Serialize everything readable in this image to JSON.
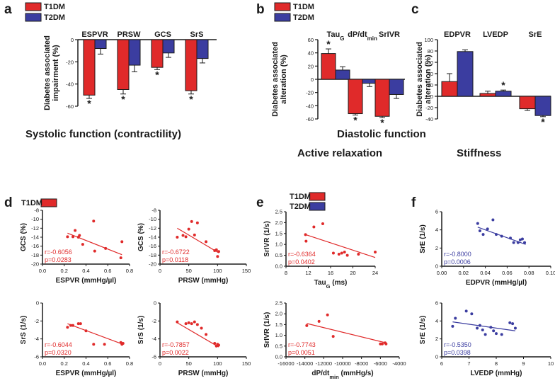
{
  "panel_labels": {
    "a": "a",
    "b": "b",
    "c": "c",
    "d": "d",
    "e": "e",
    "f": "f"
  },
  "legend_labels": {
    "t1dm": "T1DM",
    "t2dm": "T2DM"
  },
  "colors": {
    "t1dm": "#e02a2a",
    "t2dm": "#3b3da0",
    "axis": "#1a1a1a"
  },
  "headings": {
    "systolic": "Systolic function (contractility)",
    "diastolic": "Diastolic function",
    "active": "Active relaxation",
    "stiffness": "Stiffness"
  },
  "chart_data": [
    {
      "id": "a",
      "type": "bar",
      "ylabel": "Diabetes associated impairment (%)",
      "ylim": [
        -60,
        0
      ],
      "yticks": [
        -60,
        -40,
        -20,
        0
      ],
      "ytick_labels": [
        "-60",
        "-40",
        "-20",
        "0"
      ],
      "categories": [
        "ESPVR",
        "PRSW",
        "GCS",
        "SrS"
      ],
      "series": [
        {
          "name": "T1DM",
          "values": [
            -50,
            -45,
            -25,
            -46
          ],
          "err": [
            3,
            4,
            2,
            3
          ]
        },
        {
          "name": "T2DM",
          "values": [
            -8,
            -23,
            -12,
            -17
          ],
          "err": [
            5,
            6,
            4,
            4
          ]
        }
      ],
      "annotations": [
        "*",
        "*",
        "*",
        "*"
      ]
    },
    {
      "id": "b",
      "type": "bar",
      "ylabel": "Diabetes associated alteration (%)",
      "ylim": [
        -60,
        60
      ],
      "yticks": [
        -60,
        -40,
        -20,
        0,
        20,
        40,
        60
      ],
      "ytick_labels": [
        "-60",
        "-40",
        "-20",
        "0",
        "20",
        "40",
        "60"
      ],
      "categories": [
        "Tau",
        "dP/dt",
        "SrIVR"
      ],
      "category_subscripts": [
        "G",
        "min",
        ""
      ],
      "series": [
        {
          "name": "T1DM",
          "values": [
            39,
            -52,
            -56
          ],
          "err": [
            7,
            2,
            2
          ]
        },
        {
          "name": "T2DM",
          "values": [
            14,
            -6,
            -23
          ],
          "err": [
            5,
            5,
            6
          ]
        }
      ],
      "annotations": [
        "*",
        "*",
        "*"
      ]
    },
    {
      "id": "c",
      "type": "bar",
      "ylabel": "Diabetes associated alteration (%)",
      "ylim": [
        -40,
        100
      ],
      "yticks": [
        -40,
        -20,
        0,
        20,
        40,
        60,
        80,
        100
      ],
      "ytick_labels": [
        "-40",
        "-20",
        "0",
        "20",
        "40",
        "60",
        "80",
        "100"
      ],
      "categories": [
        "EDPVR",
        "LVEDP",
        "SrE"
      ],
      "series": [
        {
          "name": "T1DM",
          "values": [
            26,
            5,
            -22
          ],
          "err": [
            14,
            4,
            3
          ]
        },
        {
          "name": "T2DM",
          "values": [
            79,
            9,
            -34
          ],
          "err": [
            3,
            2,
            2
          ]
        }
      ],
      "annotations": [
        "*",
        "*"
      ]
    },
    {
      "id": "d1",
      "type": "scatter",
      "xlabel": "ESPVR (mmHg/µl)",
      "ylabel": "GCS (%)",
      "xlim": [
        0,
        0.8
      ],
      "ylim": [
        -20,
        -8
      ],
      "xticks": [
        0,
        0.2,
        0.4,
        0.6,
        0.8
      ],
      "xtick_labels": [
        "0.0",
        "0.2",
        "0.4",
        "0.6",
        "0.8"
      ],
      "yticks": [
        -20,
        -18,
        -16,
        -14,
        -12,
        -10,
        -8
      ],
      "ytick_labels": [
        "-20",
        "-18",
        "-16",
        "-14",
        "-12",
        "-10",
        "-8"
      ],
      "x": [
        0.23,
        0.28,
        0.3,
        0.33,
        0.34,
        0.37,
        0.47,
        0.48,
        0.58,
        0.72,
        0.73
      ],
      "y": [
        -13.9,
        -13.9,
        -12.5,
        -14,
        -13.6,
        -15.6,
        -10.4,
        -17.1,
        -16.5,
        -18.6,
        -15
      ],
      "fit": {
        "x": [
          0.23,
          0.73
        ],
        "y": [
          -13.1,
          -17.9
        ]
      },
      "r": "r=-0.6056",
      "p": "p=0.0283",
      "color": "#e02a2a"
    },
    {
      "id": "d2",
      "type": "scatter",
      "xlabel": "PRSW (mmHg)",
      "ylabel": "GCS (%)",
      "xlim": [
        0,
        150
      ],
      "ylim": [
        -20,
        -8
      ],
      "xticks": [
        0,
        50,
        100,
        150
      ],
      "xtick_labels": [
        "0",
        "50",
        "100",
        "150"
      ],
      "yticks": [
        -20,
        -18,
        -16,
        -14,
        -12,
        -10,
        -8
      ],
      "ytick_labels": [
        "-20",
        "-18",
        "-16",
        "-14",
        "-12",
        "-10",
        "-8"
      ],
      "x": [
        30,
        40,
        45,
        50,
        55,
        60,
        65,
        80,
        95,
        98,
        100,
        102
      ],
      "y": [
        -14,
        -13.6,
        -13.9,
        -12.2,
        -10.5,
        -13.5,
        -10.8,
        -15,
        -17,
        -16.8,
        -18.3,
        -17.2
      ],
      "fit": {
        "x": [
          30,
          102
        ],
        "y": [
          -12,
          -17.5
        ]
      },
      "r": "r=-0.6722",
      "p": "p=0.0118",
      "color": "#e02a2a"
    },
    {
      "id": "d3",
      "type": "scatter",
      "xlabel": "ESPVR (mmHg/µl)",
      "ylabel": "SrS (1/s)",
      "xlim": [
        0,
        0.8
      ],
      "ylim": [
        -6,
        0
      ],
      "xticks": [
        0,
        0.2,
        0.4,
        0.6,
        0.8
      ],
      "xtick_labels": [
        "0.0",
        "0.2",
        "0.4",
        "0.6",
        "0.8"
      ],
      "yticks": [
        -6,
        -4,
        -2,
        0
      ],
      "ytick_labels": [
        "-6",
        "-4",
        "-2",
        "0"
      ],
      "x": [
        0.23,
        0.26,
        0.28,
        0.33,
        0.35,
        0.4,
        0.47,
        0.57,
        0.72,
        0.73,
        0.74
      ],
      "y": [
        -2.7,
        -2.5,
        -2.5,
        -2.3,
        -2.3,
        -3.1,
        -4.6,
        -4.6,
        -4.4,
        -4.6,
        -4.5
      ],
      "fit": {
        "x": [
          0.23,
          0.74
        ],
        "y": [
          -2.3,
          -4.6
        ]
      },
      "r": "r=-0.6044",
      "p": "p=0.0320",
      "color": "#e02a2a"
    },
    {
      "id": "d4",
      "type": "scatter",
      "xlabel": "PRSW (mmHg)",
      "ylabel": "SrS (1/s)",
      "xlim": [
        0,
        150
      ],
      "ylim": [
        -6,
        0
      ],
      "xticks": [
        0,
        50,
        100,
        150
      ],
      "xtick_labels": [
        "0",
        "50",
        "100",
        "150"
      ],
      "yticks": [
        -6,
        -4,
        -2,
        0
      ],
      "ytick_labels": [
        "-6",
        "-4",
        "-2",
        "0"
      ],
      "x": [
        30,
        45,
        50,
        55,
        60,
        65,
        72,
        80,
        95,
        98,
        100,
        102
      ],
      "y": [
        -2.1,
        -2.3,
        -2.2,
        -2.3,
        -2.1,
        -2.4,
        -2.8,
        -3.5,
        -4.5,
        -4.8,
        -4.6,
        -4.7
      ],
      "fit": {
        "x": [
          30,
          102
        ],
        "y": [
          -2.2,
          -4.9
        ]
      },
      "r": "r=-0.7857",
      "p": "p=0.0022",
      "color": "#e02a2a"
    },
    {
      "id": "e1",
      "type": "scatter",
      "xlabel": "Tau",
      "xlabel_sub": "G",
      "xlabel_suffix": " (ms)",
      "ylabel": "SrIVR (1/s)",
      "xlim": [
        8,
        24
      ],
      "ylim": [
        0,
        2.5
      ],
      "xticks": [
        8,
        12,
        16,
        20,
        24
      ],
      "xtick_labels": [
        "8",
        "12",
        "16",
        "20",
        "24"
      ],
      "yticks": [
        0,
        0.5,
        1,
        1.5,
        2,
        2.5
      ],
      "ytick_labels": [
        "0.0",
        "0.5",
        "1.0",
        "1.5",
        "2.0",
        "2.5"
      ],
      "x": [
        11.5,
        11.6,
        13,
        14.6,
        16.5,
        17.5,
        18,
        18.5,
        19,
        21,
        24
      ],
      "y": [
        1.45,
        1.15,
        1.8,
        1.95,
        0.6,
        0.55,
        0.6,
        0.65,
        0.5,
        0.55,
        0.65
      ],
      "fit": {
        "x": [
          11.5,
          24
        ],
        "y": [
          1.45,
          0.4
        ]
      },
      "r": "r=-0.6364",
      "p": "p=0.0402",
      "color": "#e02a2a"
    },
    {
      "id": "e2",
      "type": "scatter",
      "xlabel": "dP/dt",
      "xlabel_sub": "min",
      "xlabel_suffix": " (mmHg/s)",
      "ylabel": "SrIVR (1/s)",
      "xlim": [
        -16000,
        -4000
      ],
      "ylim": [
        0,
        2.5
      ],
      "xticks": [
        -16000,
        -14000,
        -12000,
        -10000,
        -8000,
        -6000,
        -4000
      ],
      "xtick_labels": [
        "-16000",
        "-14000",
        "-12000",
        "-10000",
        "-8000",
        "-6000",
        "-4000"
      ],
      "yticks": [
        0,
        0.5,
        1,
        1.5,
        2,
        2.5
      ],
      "ytick_labels": [
        "0.0",
        "0.5",
        "1.0",
        "1.5",
        "2.0",
        "2.5"
      ],
      "x": [
        -13800,
        -12500,
        -11600,
        -11000,
        -6000,
        -5800,
        -5500,
        -5400
      ],
      "y": [
        1.45,
        1.65,
        1.95,
        0.95,
        0.6,
        0.6,
        0.65,
        0.6
      ],
      "fit": {
        "x": [
          -13800,
          -5400
        ],
        "y": [
          1.55,
          0.65
        ]
      },
      "r": "r=-0.7743",
      "p": "p=0.0051",
      "color": "#e02a2a"
    },
    {
      "id": "f1",
      "type": "scatter",
      "xlabel": "EDPVR (mmHg/µl)",
      "ylabel": "SrE (1/s)",
      "xlim": [
        0,
        0.1
      ],
      "ylim": [
        0,
        6
      ],
      "xticks": [
        0,
        0.02,
        0.04,
        0.06,
        0.08,
        0.1
      ],
      "xtick_labels": [
        "0.00",
        "0.02",
        "0.04",
        "0.06",
        "0.08",
        "0.10"
      ],
      "yticks": [
        0,
        2,
        4,
        6
      ],
      "ytick_labels": [
        "0",
        "2",
        "4",
        "6"
      ],
      "x": [
        0.033,
        0.035,
        0.038,
        0.042,
        0.047,
        0.05,
        0.055,
        0.063,
        0.066,
        0.07,
        0.072,
        0.074,
        0.076
      ],
      "y": [
        4.7,
        3.9,
        3.5,
        4.1,
        5.1,
        3.5,
        3.3,
        3.1,
        2.6,
        2.6,
        2.9,
        3.0,
        2.6
      ],
      "fit": {
        "x": [
          0.033,
          0.077
        ],
        "y": [
          4.3,
          2.4
        ]
      },
      "r": "r=-0.8000",
      "p": "p=0.0006",
      "color": "#3b3da0"
    },
    {
      "id": "f2",
      "type": "scatter",
      "xlabel": "LVEDP (mmHg)",
      "ylabel": "SrE (1/s)",
      "xlim": [
        6,
        10
      ],
      "ylim": [
        0,
        6
      ],
      "xticks": [
        6,
        7,
        8,
        9,
        10
      ],
      "xtick_labels": [
        "6",
        "7",
        "8",
        "9",
        "10"
      ],
      "yticks": [
        0,
        2,
        4,
        6
      ],
      "ytick_labels": [
        "0",
        "2",
        "4",
        "6"
      ],
      "x": [
        6.4,
        6.5,
        6.9,
        7.1,
        7.3,
        7.4,
        7.5,
        7.6,
        7.8,
        7.9,
        8.0,
        8.2,
        8.5,
        8.6,
        8.7
      ],
      "y": [
        3.4,
        4.3,
        5.1,
        4.8,
        3.2,
        3.5,
        3.0,
        2.5,
        3.3,
        2.9,
        2.6,
        2.5,
        3.8,
        3.7,
        3.2
      ],
      "fit": {
        "x": [
          6.4,
          8.7
        ],
        "y": [
          3.9,
          2.9
        ]
      },
      "r": "r=-0.5350",
      "p": "p=0.0398",
      "color": "#3b3da0"
    }
  ]
}
